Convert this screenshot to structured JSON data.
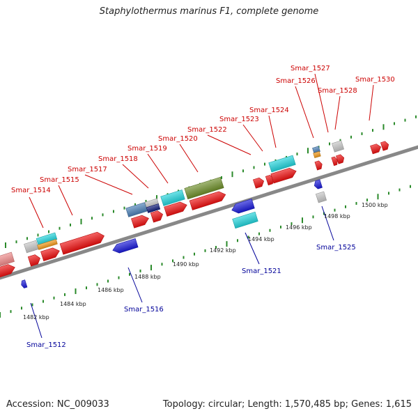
{
  "title": "Staphylothermus marinus F1, complete genome",
  "footer": {
    "accession": "Accession: NC_009033",
    "summary": "Topology: circular; Length: 1,570,485 bp; Genes: 1,615"
  },
  "colors": {
    "forward_gene": "#ee1111",
    "reverse_gene": "#1a1ad8",
    "forward_label": "#cc0000",
    "reverse_label": "#000099",
    "pink": "#f08a8a",
    "gray": "#c6c6c6",
    "cyan": "#22d4dc",
    "orange": "#f29a1a",
    "steelblue": "#4a7fb6",
    "navy": "#121d7a",
    "olive": "#6e8f2a",
    "backbone": "#888888",
    "tick": "#2a8a2a"
  },
  "scale_labels": [
    "1482 kbp",
    "1484 kbp",
    "1486 kbp",
    "1488 kbp",
    "1490 kbp",
    "1492 kbp",
    "1494 kbp",
    "1496 kbp",
    "1498 kbp",
    "1500 kbp"
  ],
  "forward_labels": [
    "Smar_1514",
    "Smar_1515",
    "Smar_1517",
    "Smar_1518",
    "Smar_1519",
    "Smar_1520",
    "Smar_1522",
    "Smar_1523",
    "Smar_1524",
    "Smar_1526",
    "Smar_1527",
    "Smar_1528",
    "Smar_1530"
  ],
  "reverse_labels": [
    "Smar_1512",
    "Smar_1516",
    "Smar_1521",
    "Smar_1525"
  ]
}
